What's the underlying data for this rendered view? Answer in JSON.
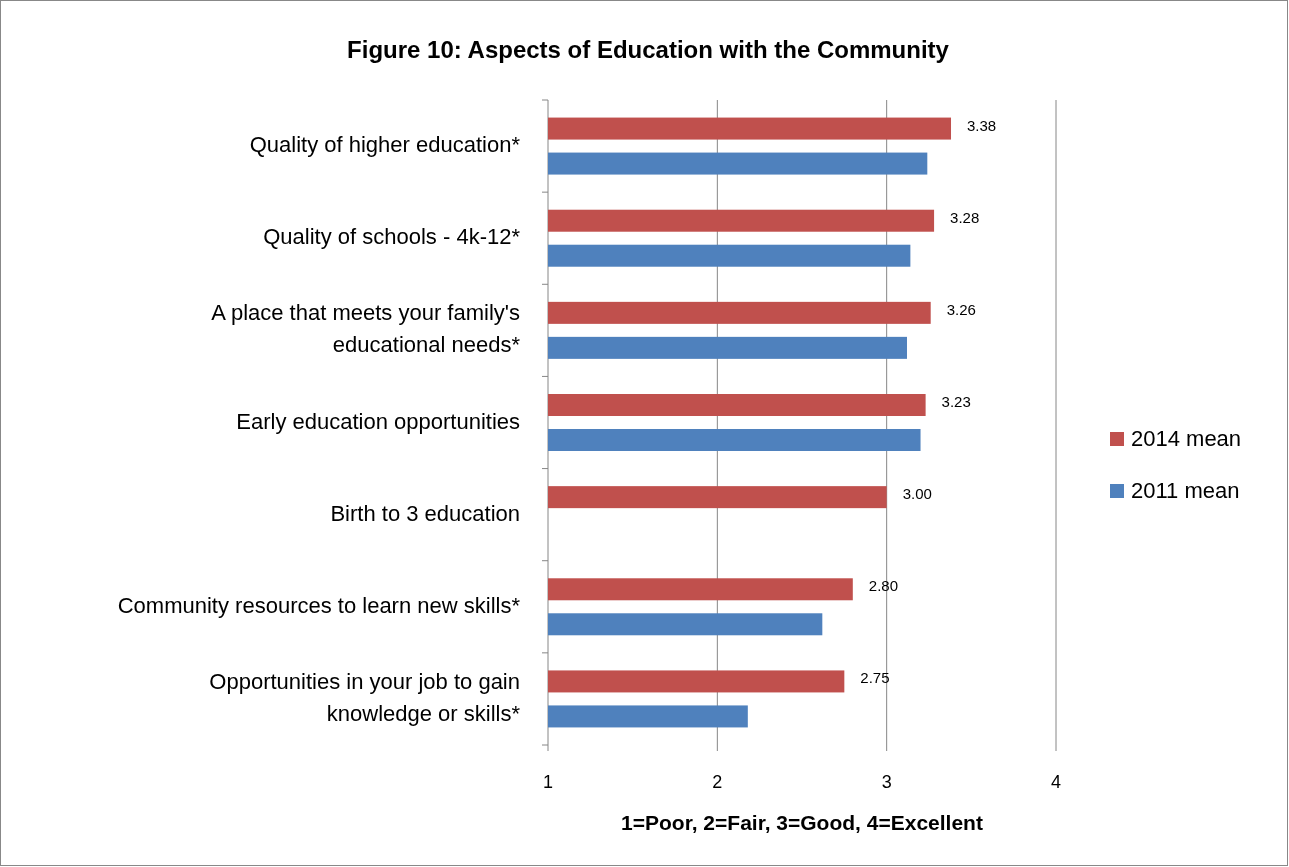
{
  "chart_data": {
    "type": "bar",
    "orientation": "horizontal",
    "title": "Figure 10: Aspects of Education with the Community",
    "xlabel": "1=Poor, 2=Fair, 3=Good, 4=Excellent",
    "categories": [
      "Quality of higher education*",
      "Quality of schools - 4k-12*",
      "A place that meets your family's educational needs*",
      "Early education opportunities",
      "Birth to 3 education",
      "Community resources to learn new skills*",
      "Opportunities in your job to gain knowledge or skills*"
    ],
    "series": [
      {
        "name": "2014 mean",
        "color": "#c0504d",
        "values": [
          3.38,
          3.28,
          3.26,
          3.23,
          3.0,
          2.8,
          2.75
        ],
        "value_labels": [
          "3.38",
          "3.28",
          "3.26",
          "3.23",
          "3.00",
          "2.80",
          "2.75"
        ]
      },
      {
        "name": "2011 mean",
        "color": "#4f81bd",
        "values": [
          3.24,
          3.14,
          3.12,
          3.2,
          null,
          2.62,
          2.18
        ]
      }
    ],
    "xlim": [
      1,
      4
    ],
    "xticks": [
      1,
      2,
      3,
      4
    ],
    "grid": "x",
    "legend": "right"
  }
}
